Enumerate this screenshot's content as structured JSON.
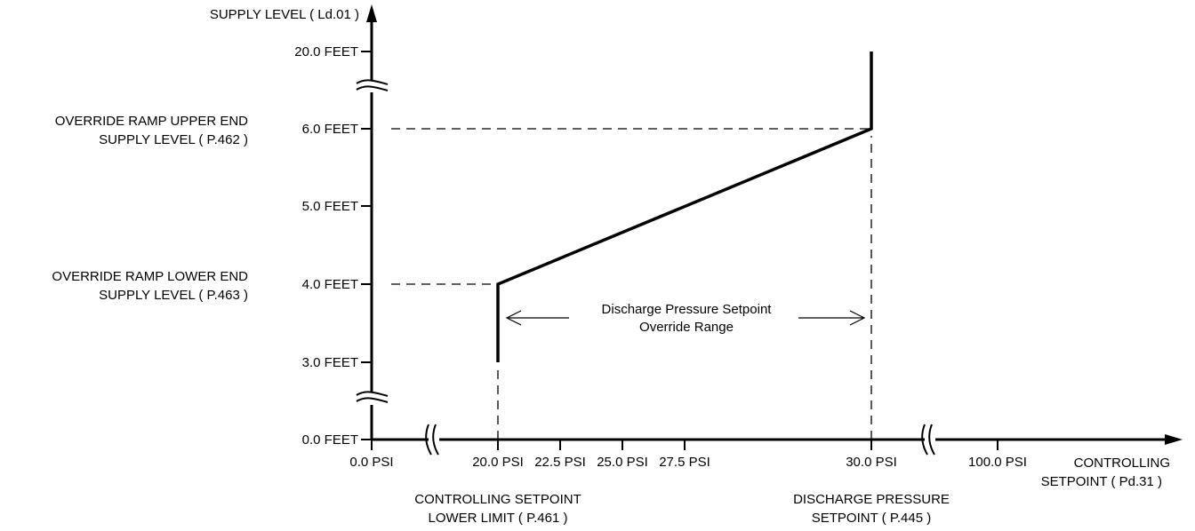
{
  "chart_data": {
    "type": "line",
    "ylabel": "SUPPLY LEVEL ( Ld.01 )",
    "xlabel_lines": [
      "CONTROLLING",
      "SETPOINT ( Pd.31 )"
    ],
    "x_ticks": [
      {
        "value": 0.0,
        "label": "0.0 PSI"
      },
      {
        "value": 20.0,
        "label": "20.0 PSI"
      },
      {
        "value": 22.5,
        "label": "22.5 PSI"
      },
      {
        "value": 25.0,
        "label": "25.0 PSI"
      },
      {
        "value": 27.5,
        "label": "27.5 PSI"
      },
      {
        "value": 30.0,
        "label": "30.0 PSI"
      },
      {
        "value": 100.0,
        "label": "100.0 PSI"
      }
    ],
    "y_ticks": [
      {
        "value": 0.0,
        "label": "0.0 FEET"
      },
      {
        "value": 3.0,
        "label": "3.0 FEET"
      },
      {
        "value": 4.0,
        "label": "4.0 FEET"
      },
      {
        "value": 5.0,
        "label": "5.0 FEET"
      },
      {
        "value": 6.0,
        "label": "6.0 FEET"
      },
      {
        "value": 20.0,
        "label": "20.0 FEET"
      }
    ],
    "x_axis_breaks": [
      [
        0.0,
        20.0
      ],
      [
        30.0,
        100.0
      ]
    ],
    "y_axis_breaks": [
      [
        0.0,
        3.0
      ],
      [
        6.0,
        20.0
      ]
    ],
    "series": [
      {
        "x": [
          20.0,
          20.0,
          30.0,
          30.0
        ],
        "y": [
          3.0,
          4.0,
          6.0,
          20.0
        ]
      }
    ],
    "guides": [
      {
        "orientation": "horizontal",
        "y": 6.0,
        "x_from": 0.0,
        "x_to": 30.0
      },
      {
        "orientation": "horizontal",
        "y": 4.0,
        "x_from": 0.0,
        "x_to": 20.0
      },
      {
        "orientation": "vertical",
        "x": 20.0,
        "y_from": 0.0,
        "y_to": 3.0
      },
      {
        "orientation": "vertical",
        "x": 30.0,
        "y_from": 0.0,
        "y_to": 6.0
      }
    ],
    "annotations": {
      "upper_label": [
        "OVERRIDE RAMP UPPER END",
        "SUPPLY LEVEL ( P.462 )"
      ],
      "lower_label": [
        "OVERRIDE RAMP LOWER END",
        "SUPPLY LEVEL ( P.463 )"
      ],
      "range_label": [
        "Discharge Pressure Setpoint",
        "Override Range"
      ],
      "range_from": 20.0,
      "range_to": 30.0,
      "lower_limit_label": [
        "CONTROLLING SETPOINT",
        "LOWER LIMIT ( P.461 )"
      ],
      "discharge_label": [
        "DISCHARGE PRESSURE",
        "SETPOINT ( P.445 )"
      ]
    },
    "grid": false,
    "legend": "none"
  }
}
